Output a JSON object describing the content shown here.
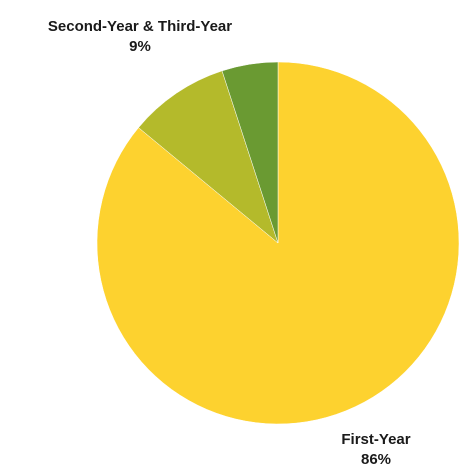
{
  "chart_data": {
    "type": "pie",
    "categories": [
      "First-Year",
      "Second-Year & Third-Year",
      ""
    ],
    "values": [
      86,
      9,
      5
    ],
    "labels": [
      {
        "category": "First-Year",
        "percent": "86%"
      },
      {
        "category": "Second-Year & Third-Year",
        "percent": "9%"
      }
    ],
    "colors": [
      "#fdd22f",
      "#b4ba2b",
      "#6a9a32"
    ],
    "start_angle": "12 o'clock",
    "direction": "clockwise",
    "legend": "none"
  }
}
